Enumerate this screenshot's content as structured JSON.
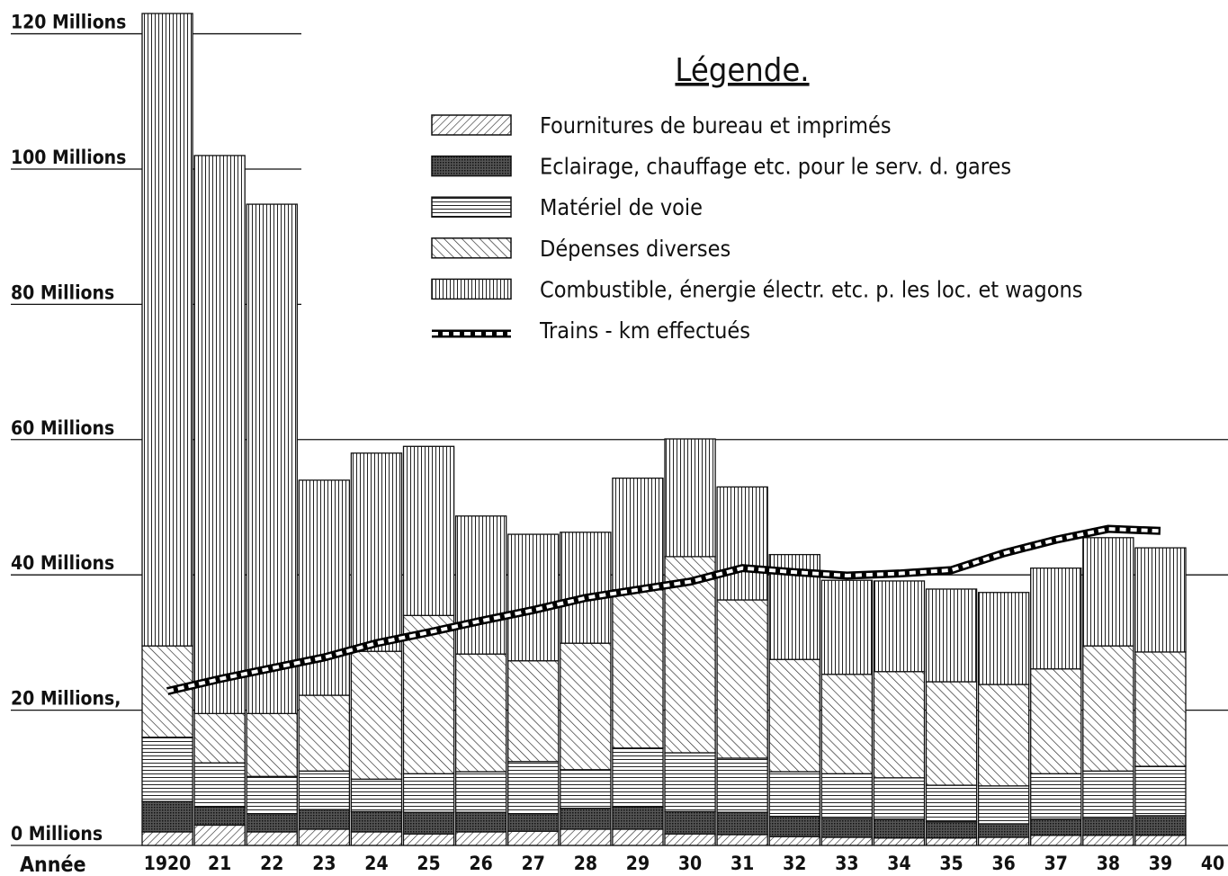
{
  "chart_data": {
    "type": "bar",
    "stacked": true,
    "legend_title": "Légende.",
    "x_label": "Année",
    "categories": [
      "1920",
      "21",
      "22",
      "23",
      "24",
      "25",
      "26",
      "27",
      "28",
      "29",
      "30",
      "31",
      "32",
      "33",
      "34",
      "35",
      "36",
      "37",
      "38",
      "39",
      "40"
    ],
    "series": [
      {
        "name": "Fournitures de bureau et imprimés",
        "color": "#111111",
        "values": [
          2,
          3,
          2,
          2.4,
          2,
          1.7,
          2,
          2.1,
          2.4,
          2.4,
          1.7,
          1.6,
          1.3,
          1.2,
          1.1,
          1.1,
          1.2,
          1.5,
          1.5,
          1.5,
          null
        ]
      },
      {
        "name": "Eclairage, chauffage etc. pour le serv. d. gares",
        "color": "#111111",
        "values": [
          4.5,
          2.7,
          2.7,
          2.9,
          3,
          3.2,
          2.9,
          2.6,
          3.1,
          3.3,
          3.3,
          3.3,
          3,
          2.8,
          2.8,
          2.4,
          2,
          2.4,
          2.5,
          2.9,
          null
        ]
      },
      {
        "name": "Matériel de voie",
        "color": "#111111",
        "values": [
          9.5,
          6.5,
          5.5,
          5.7,
          4.8,
          5.7,
          6,
          7.7,
          5.7,
          8.7,
          8.7,
          8,
          6.6,
          6.6,
          6.1,
          5.4,
          5.6,
          6.7,
          7,
          7.3,
          null
        ]
      },
      {
        "name": "Dépenses diverses",
        "color": "#111111",
        "values": [
          13.5,
          7.3,
          9.3,
          11.2,
          18.9,
          23.4,
          17.4,
          14.9,
          18.7,
          23.4,
          29,
          23.4,
          16.6,
          14.7,
          15.7,
          15.3,
          15,
          15.5,
          18.5,
          16.9,
          null
        ]
      },
      {
        "name": "Combustible, énergie électr. etc. p. les loc. et wagons",
        "color": "#111111",
        "values": [
          93.5,
          82.5,
          75.3,
          31.8,
          29.3,
          25,
          20.4,
          18.7,
          16.4,
          16.5,
          17.4,
          16.7,
          15.5,
          13.9,
          13.4,
          13.7,
          13.6,
          14.9,
          16,
          15.4,
          null
        ]
      },
      {
        "name": "Trains - km effectués",
        "type": "line",
        "color": "#000000",
        "values": [
          22.8,
          24.6,
          26.2,
          27.8,
          29.9,
          31.5,
          33.2,
          34.8,
          36.6,
          37.8,
          39,
          41,
          40.4,
          39.9,
          40.2,
          40.7,
          43.2,
          45.2,
          46.8,
          46.5,
          null
        ]
      }
    ],
    "ylim": [
      0,
      123
    ],
    "yticks": [
      {
        "value": 0,
        "label": "0 Millions"
      },
      {
        "value": 20,
        "label": "20 Millions,"
      },
      {
        "value": 40,
        "label": "40 Millions"
      },
      {
        "value": 60,
        "label": "60 Millions"
      },
      {
        "value": 80,
        "label": "80 Millions"
      },
      {
        "value": 100,
        "label": "100 Millions"
      },
      {
        "value": 120,
        "label": "120 Millions"
      }
    ],
    "grid": true
  }
}
